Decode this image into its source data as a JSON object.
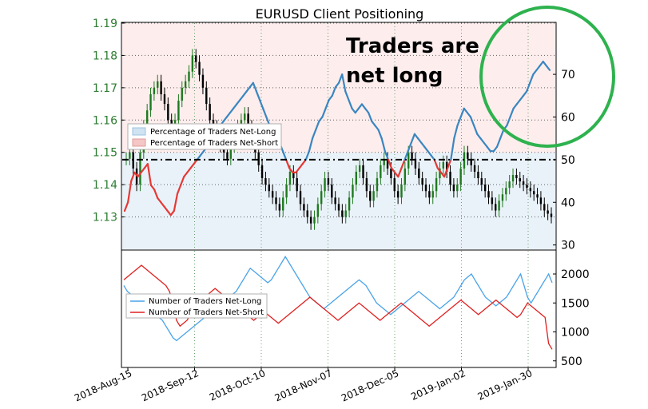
{
  "chart_data": [
    {
      "type": "line",
      "title": "EURUSD Client Positioning",
      "x_dates": [
        "2018-Aug-15",
        "2018-Sep-12",
        "2018-Oct-10",
        "2018-Nov-07",
        "2018-Dec-05",
        "2019-Jan-02",
        "2019-Jan-30"
      ],
      "left_axis": {
        "ylim": [
          1.12,
          1.19
        ],
        "ticks": [
          "1.13",
          "1.14",
          "1.15",
          "1.16",
          "1.17",
          "1.18",
          "1.19"
        ]
      },
      "right_axis": {
        "ylim": [
          29,
          82
        ],
        "ticks": [
          "30",
          "40",
          "50",
          "60",
          "70"
        ]
      },
      "legend": [
        {
          "label": "Percentage of Traders Net-Long",
          "color": "#cfe3f2"
        },
        {
          "label": "Percentage of Traders Net-Short",
          "color": "#f4c6c6"
        }
      ],
      "reference_line": 50,
      "series_percent_net_long": [
        38,
        40,
        45,
        47,
        46,
        47,
        48,
        49,
        44,
        43,
        41,
        40,
        39,
        38,
        37,
        38,
        42,
        44,
        46,
        47,
        48,
        49,
        50,
        51,
        52,
        53,
        54,
        55,
        57,
        58,
        59,
        60,
        61,
        62,
        63,
        64,
        65,
        66,
        67,
        68,
        66,
        64,
        62,
        60,
        58,
        56,
        55,
        54,
        52,
        50,
        48,
        47,
        47,
        48,
        49,
        50,
        52,
        55,
        57,
        59,
        60,
        62,
        64,
        65,
        67,
        68,
        70,
        66,
        64,
        62,
        61,
        62,
        63,
        62,
        61,
        59,
        58,
        57,
        55,
        52,
        50,
        48,
        47,
        46,
        48,
        50,
        52,
        54,
        56,
        55,
        54,
        53,
        52,
        51,
        50,
        48,
        47,
        46,
        48,
        50,
        55,
        58,
        60,
        62,
        61,
        60,
        58,
        56,
        55,
        54,
        53,
        52,
        52,
        53,
        55,
        57,
        58,
        60,
        62,
        63,
        64,
        65,
        66,
        68,
        70,
        71,
        72,
        73,
        72,
        71
      ],
      "price_candles_close": [
        1.148,
        1.15,
        1.145,
        1.14,
        1.15,
        1.158,
        1.163,
        1.168,
        1.17,
        1.172,
        1.168,
        1.165,
        1.16,
        1.158,
        1.16,
        1.166,
        1.17,
        1.172,
        1.175,
        1.18,
        1.178,
        1.174,
        1.17,
        1.165,
        1.16,
        1.158,
        1.155,
        1.152,
        1.15,
        1.148,
        1.152,
        1.155,
        1.158,
        1.16,
        1.162,
        1.158,
        1.154,
        1.15,
        1.146,
        1.142,
        1.14,
        1.138,
        1.136,
        1.134,
        1.132,
        1.136,
        1.14,
        1.144,
        1.142,
        1.138,
        1.134,
        1.132,
        1.13,
        1.128,
        1.13,
        1.134,
        1.138,
        1.142,
        1.14,
        1.136,
        1.134,
        1.132,
        1.13,
        1.132,
        1.136,
        1.14,
        1.144,
        1.146,
        1.142,
        1.138,
        1.135,
        1.138,
        1.142,
        1.146,
        1.148,
        1.145,
        1.142,
        1.138,
        1.136,
        1.14,
        1.145,
        1.15,
        1.148,
        1.145,
        1.142,
        1.14,
        1.138,
        1.136,
        1.138,
        1.142,
        1.145,
        1.147,
        1.144,
        1.14,
        1.138,
        1.14,
        1.145,
        1.15,
        1.148,
        1.146,
        1.144,
        1.142,
        1.14,
        1.138,
        1.136,
        1.134,
        1.132,
        1.135,
        1.137,
        1.139,
        1.141,
        1.143,
        1.142,
        1.141,
        1.14,
        1.139,
        1.138,
        1.137,
        1.136,
        1.134,
        1.132,
        1.131,
        1.13
      ]
    },
    {
      "type": "line",
      "right_axis": {
        "ylim": [
          400,
          2400
        ],
        "ticks": [
          "500",
          "1000",
          "1500",
          "2000"
        ]
      },
      "legend": [
        {
          "label": "Number of Traders Net-Long",
          "color": "#4aa3e8"
        },
        {
          "label": "Number of Traders Net-Short",
          "color": "#e02020"
        }
      ],
      "series": [
        {
          "name": "Number of Traders Net-Long",
          "color": "#4aa3e8",
          "values": [
            1800,
            1700,
            1650,
            1600,
            1550,
            1500,
            1450,
            1400,
            1350,
            1300,
            1250,
            1200,
            1100,
            1000,
            900,
            850,
            900,
            950,
            1000,
            1050,
            1100,
            1150,
            1200,
            1250,
            1300,
            1350,
            1400,
            1450,
            1500,
            1550,
            1600,
            1650,
            1700,
            1800,
            1900,
            2000,
            2100,
            2050,
            2000,
            1950,
            1900,
            1850,
            1900,
            2000,
            2100,
            2200,
            2300,
            2200,
            2100,
            2000,
            1900,
            1800,
            1700,
            1600,
            1550,
            1500,
            1450,
            1400,
            1450,
            1500,
            1550,
            1600,
            1650,
            1700,
            1750,
            1800,
            1850,
            1900,
            1850,
            1800,
            1700,
            1600,
            1500,
            1450,
            1400,
            1350,
            1300,
            1350,
            1400,
            1450,
            1500,
            1550,
            1600,
            1650,
            1700,
            1650,
            1600,
            1550,
            1500,
            1450,
            1400,
            1450,
            1500,
            1550,
            1600,
            1700,
            1800,
            1900,
            1950,
            2000,
            1900,
            1800,
            1700,
            1600,
            1550,
            1500,
            1450,
            1500,
            1550,
            1600,
            1700,
            1800,
            1900,
            2000,
            1800,
            1600,
            1500,
            1600,
            1700,
            1800,
            1900,
            2000,
            1850
          ]
        },
        {
          "name": "Number of Traders Net-Short",
          "color": "#e02020",
          "values": [
            1900,
            1950,
            2000,
            2050,
            2100,
            2150,
            2100,
            2050,
            2000,
            1950,
            1900,
            1850,
            1800,
            1700,
            1500,
            1200,
            1100,
            1150,
            1200,
            1300,
            1400,
            1500,
            1550,
            1600,
            1650,
            1700,
            1750,
            1700,
            1650,
            1600,
            1550,
            1500,
            1450,
            1400,
            1350,
            1300,
            1250,
            1200,
            1250,
            1300,
            1350,
            1300,
            1250,
            1200,
            1150,
            1200,
            1250,
            1300,
            1350,
            1400,
            1450,
            1500,
            1550,
            1600,
            1550,
            1500,
            1450,
            1400,
            1350,
            1300,
            1250,
            1200,
            1250,
            1300,
            1350,
            1400,
            1450,
            1500,
            1450,
            1400,
            1350,
            1300,
            1250,
            1200,
            1250,
            1300,
            1350,
            1400,
            1450,
            1500,
            1450,
            1400,
            1350,
            1300,
            1250,
            1200,
            1150,
            1100,
            1150,
            1200,
            1250,
            1300,
            1350,
            1400,
            1450,
            1500,
            1550,
            1500,
            1450,
            1400,
            1350,
            1300,
            1350,
            1400,
            1450,
            1500,
            1550,
            1500,
            1450,
            1400,
            1350,
            1300,
            1250,
            1300,
            1400,
            1500,
            1450,
            1400,
            1350,
            1300,
            1250,
            800,
            700
          ]
        }
      ]
    }
  ],
  "annotation": {
    "line1": "Traders are",
    "line2": "net long"
  },
  "highlight_circle": {
    "color": "#2eb24e"
  }
}
